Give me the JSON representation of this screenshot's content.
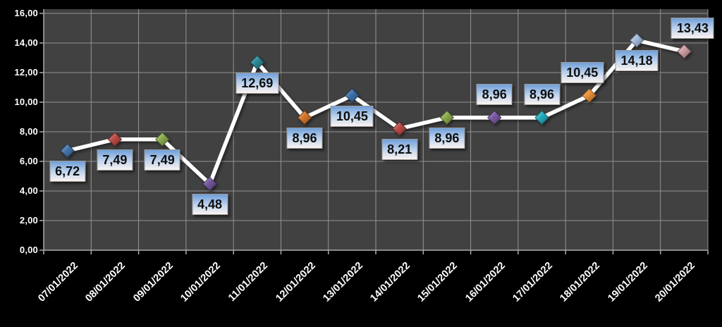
{
  "chart_data": {
    "type": "line",
    "title": "",
    "legend": "none",
    "grid": true,
    "categories": [
      "07/01/2022",
      "08/01/2022",
      "09/01/2022",
      "10/01/2022",
      "11/01/2022",
      "12/01/2022",
      "13/01/2022",
      "14/01/2022",
      "15/01/2022",
      "16/01/2022",
      "17/01/2022",
      "18/01/2022",
      "19/01/2022",
      "20/01/2022"
    ],
    "values": [
      6.72,
      7.49,
      7.49,
      4.48,
      12.69,
      8.96,
      10.45,
      8.21,
      8.96,
      8.96,
      8.96,
      10.45,
      14.18,
      13.43
    ],
    "point_labels": [
      "6,72",
      "7,49",
      "7,49",
      "4,48",
      "12,69",
      "8,96",
      "10,45",
      "8,21",
      "8,96",
      "8,96",
      "8,96",
      "10,45",
      "14,18",
      "13,43"
    ],
    "y_ticks": [
      "0,00",
      "2,00",
      "4,00",
      "6,00",
      "8,00",
      "10,00",
      "12,00",
      "14,00",
      "16,00"
    ],
    "ylim": [
      0,
      16
    ],
    "y_step": 2,
    "decimal_separator": ",",
    "marker_colors": [
      "#4577AE",
      "#BE4B48",
      "#8CAC4E",
      "#7459A0",
      "#2E8B9A",
      "#D9782D",
      "#3E73AC",
      "#BE4B48",
      "#8CAC4E",
      "#7B5BA3",
      "#27AEC0",
      "#EC9338",
      "#A5BDDE",
      "#D0A0A3"
    ],
    "label_sides": [
      "below",
      "below",
      "below",
      "below",
      "below",
      "below",
      "below",
      "below",
      "below",
      "above",
      "above",
      "above",
      "below",
      "above"
    ],
    "label_dx": [
      0,
      0,
      0,
      0,
      0,
      0,
      0,
      0,
      0,
      0,
      0,
      -10,
      0,
      12
    ],
    "colors": {
      "chart_bg": "#000000",
      "plot_bg": "#414141",
      "gridline": "#949494",
      "axis": "#aaaaaa",
      "line": "#ffffff",
      "tick_text": "#ffffff",
      "label_box_top": "#6f9fd8",
      "label_box_mid": "#c2d6ee",
      "label_box_bottom": "#faf3f0",
      "label_border": "#9e9e9e",
      "label_text": "#0e0e0e"
    }
  }
}
